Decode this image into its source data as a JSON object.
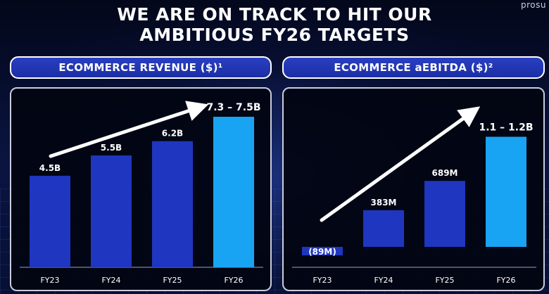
{
  "brand": "prosu",
  "title_line1": "WE ARE ON TRACK TO HIT OUR",
  "title_line2": "AMBITIOUS FY26 TARGETS",
  "colors": {
    "bar_dark": "#1f36c0",
    "bar_light": "#18a4f2",
    "bar_negative": "#1f36c0",
    "arrow": "#ffffff"
  },
  "chart_data": [
    {
      "type": "bar",
      "title": "ECOMMERCE REVENUE ($)¹",
      "categories": [
        "FY23",
        "FY24",
        "FY25",
        "FY26"
      ],
      "values": [
        4.5,
        5.5,
        6.2,
        7.4
      ],
      "value_labels": [
        "4.5B",
        "5.5B",
        "6.2B",
        "7.3 – 7.5B"
      ],
      "unit": "$B",
      "ylim": [
        0,
        8.3
      ],
      "highlight_last": true,
      "trend_arrow": true
    },
    {
      "type": "bar",
      "title": "ECOMMERCE aEBITDA ($)²",
      "categories": [
        "FY23",
        "FY24",
        "FY25",
        "FY26"
      ],
      "values": [
        -89,
        383,
        689,
        1150
      ],
      "value_labels": [
        "(89M)",
        "383M",
        "689M",
        "1.1 – 1.2B"
      ],
      "unit": "$M",
      "ylim": [
        -150,
        1550
      ],
      "highlight_last": true,
      "trend_arrow": true
    }
  ]
}
